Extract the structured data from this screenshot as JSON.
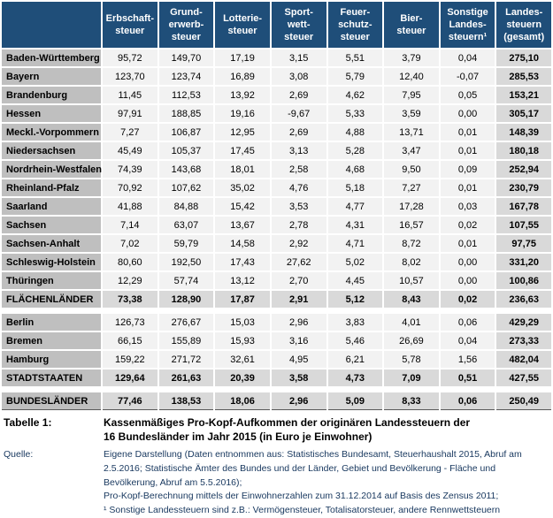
{
  "colors": {
    "header_bg": "#1F4E79",
    "header_text": "#FFFFFF",
    "row_label_bg": "#BFBFBF",
    "data_cell_bg": "#F2F2F2",
    "total_cell_bg": "#D9D9D9",
    "gesamt_col_bg": "#D9D9D9",
    "source_text": "#17375E"
  },
  "table": {
    "corner": "",
    "columns": [
      "Erbschaft-\nsteuer",
      "Grund-\nerwerb-\nsteuer",
      "Lotterie-\nsteuer",
      "Sport-\nwett-\nsteuer",
      "Feuer-\nschutz-\nsteuer",
      "Bier-\nsteuer",
      "Sonstige\nLandes-\nsteuern¹",
      "Landes-\nsteuern\n(gesamt)"
    ],
    "rows": [
      {
        "type": "data",
        "label": "Baden-Württemberg",
        "values": [
          "95,72",
          "149,70",
          "17,19",
          "3,15",
          "5,51",
          "3,79",
          "0,04",
          "275,10"
        ]
      },
      {
        "type": "data",
        "label": "Bayern",
        "values": [
          "123,70",
          "123,74",
          "16,89",
          "3,08",
          "5,79",
          "12,40",
          "-0,07",
          "285,53"
        ]
      },
      {
        "type": "data",
        "label": "Brandenburg",
        "values": [
          "11,45",
          "112,53",
          "13,92",
          "2,69",
          "4,62",
          "7,95",
          "0,05",
          "153,21"
        ]
      },
      {
        "type": "data",
        "label": "Hessen",
        "values": [
          "97,91",
          "188,85",
          "19,16",
          "-9,67",
          "5,33",
          "3,59",
          "0,00",
          "305,17"
        ]
      },
      {
        "type": "data",
        "label": "Meckl.-Vorpommern",
        "values": [
          "7,27",
          "106,87",
          "12,95",
          "2,69",
          "4,88",
          "13,71",
          "0,01",
          "148,39"
        ]
      },
      {
        "type": "data",
        "label": "Niedersachsen",
        "values": [
          "45,49",
          "105,37",
          "17,45",
          "3,13",
          "5,28",
          "3,47",
          "0,01",
          "180,18"
        ]
      },
      {
        "type": "data",
        "label": "Nordrhein-Westfalen",
        "values": [
          "74,39",
          "143,68",
          "18,01",
          "2,58",
          "4,68",
          "9,50",
          "0,09",
          "252,94"
        ]
      },
      {
        "type": "data",
        "label": "Rheinland-Pfalz",
        "values": [
          "70,92",
          "107,62",
          "35,02",
          "4,76",
          "5,18",
          "7,27",
          "0,01",
          "230,79"
        ]
      },
      {
        "type": "data",
        "label": "Saarland",
        "values": [
          "41,88",
          "84,88",
          "15,42",
          "3,53",
          "4,77",
          "17,28",
          "0,03",
          "167,78"
        ]
      },
      {
        "type": "data",
        "label": "Sachsen",
        "values": [
          "7,14",
          "63,07",
          "13,67",
          "2,78",
          "4,31",
          "16,57",
          "0,02",
          "107,55"
        ]
      },
      {
        "type": "data",
        "label": "Sachsen-Anhalt",
        "values": [
          "7,02",
          "59,79",
          "14,58",
          "2,92",
          "4,71",
          "8,72",
          "0,01",
          "97,75"
        ]
      },
      {
        "type": "data",
        "label": "Schleswig-Holstein",
        "values": [
          "80,60",
          "192,50",
          "17,43",
          "27,62",
          "5,02",
          "8,02",
          "0,00",
          "331,20"
        ]
      },
      {
        "type": "data",
        "label": "Thüringen",
        "values": [
          "12,29",
          "57,74",
          "13,12",
          "2,70",
          "4,45",
          "10,57",
          "0,00",
          "100,86"
        ]
      },
      {
        "type": "total",
        "label": "FLÄCHENLÄNDER",
        "values": [
          "73,38",
          "128,90",
          "17,87",
          "2,91",
          "5,12",
          "8,43",
          "0,02",
          "236,63"
        ]
      },
      {
        "type": "spacer"
      },
      {
        "type": "data",
        "label": "Berlin",
        "values": [
          "126,73",
          "276,67",
          "15,03",
          "2,96",
          "3,83",
          "4,01",
          "0,06",
          "429,29"
        ]
      },
      {
        "type": "data",
        "label": "Bremen",
        "values": [
          "66,15",
          "155,89",
          "15,93",
          "3,16",
          "5,46",
          "26,69",
          "0,04",
          "273,33"
        ]
      },
      {
        "type": "data",
        "label": "Hamburg",
        "values": [
          "159,22",
          "271,72",
          "32,61",
          "4,95",
          "6,21",
          "5,78",
          "1,56",
          "482,04"
        ]
      },
      {
        "type": "total",
        "label": "STADTSTAATEN",
        "values": [
          "129,64",
          "261,63",
          "20,39",
          "3,58",
          "4,73",
          "7,09",
          "0,51",
          "427,55"
        ]
      },
      {
        "type": "spacer"
      },
      {
        "type": "total",
        "label": "BUNDESLÄNDER",
        "values": [
          "77,46",
          "138,53",
          "18,06",
          "2,96",
          "5,09",
          "8,33",
          "0,06",
          "250,49"
        ]
      }
    ]
  },
  "caption": {
    "label": "Tabelle 1:",
    "text": "Kassenmäßiges Pro-Kopf-Aufkommen der originären Landessteuern der 16 Bundesländer im Jahr 2015 (in Euro je Einwohner)"
  },
  "source": {
    "label": "Quelle:",
    "lines": [
      "Eigene Darstellung (Daten entnommen aus: Statistisches Bundesamt, Steuerhaushalt 2015, Abruf am 2.5.2016; Statistische Ämter des Bundes und der Länder, Gebiet und Bevölkerung - Fläche und Bevölkerung, Abruf am 5.5.2016);",
      "Pro-Kopf-Berechnung mittels der Einwohnerzahlen zum 31.12.2014 auf Basis des Zensus 2011;",
      "¹ Sonstige Landessteuern sind z.B.: Vermögensteuer, Totalisatorsteuer, andere Rennwettsteuern"
    ]
  }
}
